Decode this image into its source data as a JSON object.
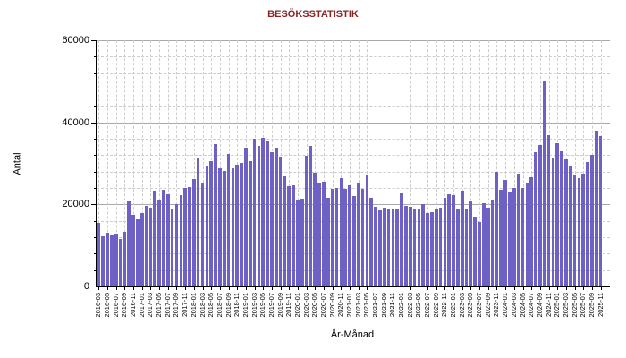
{
  "title": "BESÖKSSTATISTIK",
  "x_axis_title": "År-Månad",
  "y_axis_title": "Antal",
  "colors": {
    "bar": "#6e61c6",
    "title": "#8b2323",
    "grid_minor": "#cccccc",
    "grid_major": "#a9a9a9",
    "axis": "#000000",
    "text": "#000000"
  },
  "chart_data": {
    "type": "bar",
    "title": "BESÖKSSTATISTIK",
    "xlabel": "År-Månad",
    "ylabel": "Antal",
    "ylim": [
      0,
      60000
    ],
    "y_major_step": 20000,
    "y_minor_step": 4000,
    "x_tick_every": 2,
    "grid": true,
    "legend_position": "none",
    "months": [
      "2016-03",
      "2016-04",
      "2016-05",
      "2016-06",
      "2016-07",
      "2016-08",
      "2016-09",
      "2016-10",
      "2016-11",
      "2016-12",
      "2017-01",
      "2017-02",
      "2017-03",
      "2017-04",
      "2017-05",
      "2017-06",
      "2017-07",
      "2017-08",
      "2017-09",
      "2017-10",
      "2017-11",
      "2017-12",
      "2018-01",
      "2018-02",
      "2018-03",
      "2018-04",
      "2018-05",
      "2018-06",
      "2018-07",
      "2018-08",
      "2018-09",
      "2018-10",
      "2018-11",
      "2018-12",
      "2019-01",
      "2019-02",
      "2019-03",
      "2019-04",
      "2019-05",
      "2019-06",
      "2019-07",
      "2019-08",
      "2019-09",
      "2019-10",
      "2019-11",
      "2019-12",
      "2020-01",
      "2020-02",
      "2020-03",
      "2020-04",
      "2020-05",
      "2020-06",
      "2020-07",
      "2020-08",
      "2020-09",
      "2020-10",
      "2020-11",
      "2020-12",
      "2021-01",
      "2021-02",
      "2021-03",
      "2021-04",
      "2021-05",
      "2021-06",
      "2021-07",
      "2021-08",
      "2021-09",
      "2021-10",
      "2021-11",
      "2021-12",
      "2022-01",
      "2022-02",
      "2022-03",
      "2022-04",
      "2022-05",
      "2022-06",
      "2022-07",
      "2022-08",
      "2022-09",
      "2022-10",
      "2022-11",
      "2022-12",
      "2023-01",
      "2023-02",
      "2023-03",
      "2023-04",
      "2023-05",
      "2023-06",
      "2023-07",
      "2023-08",
      "2023-09",
      "2023-10",
      "2023-11",
      "2023-12",
      "2024-01",
      "2024-02",
      "2024-03",
      "2024-04",
      "2024-05",
      "2024-06",
      "2024-07",
      "2024-08",
      "2024-09",
      "2024-10",
      "2024-11",
      "2024-12",
      "2025-01",
      "2025-02",
      "2025-03",
      "2025-04",
      "2025-05",
      "2025-06",
      "2025-07",
      "2025-08",
      "2025-09",
      "2025-10",
      "2025-11"
    ],
    "values": [
      15600,
      12200,
      13100,
      12500,
      12600,
      11500,
      13300,
      20700,
      17500,
      16300,
      17800,
      19600,
      19200,
      23400,
      20900,
      23600,
      22400,
      18900,
      20000,
      22200,
      24000,
      24300,
      26200,
      31300,
      25400,
      29200,
      30600,
      34700,
      28700,
      28200,
      32200,
      28900,
      29700,
      30200,
      33800,
      30500,
      35900,
      34300,
      36200,
      35500,
      32800,
      33800,
      31700,
      26900,
      24500,
      24600,
      21000,
      21300,
      31900,
      34300,
      27800,
      25200,
      25600,
      21700,
      23800,
      24100,
      26400,
      23800,
      24600,
      22100,
      25400,
      23800,
      27000,
      21600,
      19400,
      18600,
      19300,
      18700,
      19000,
      18900,
      22700,
      19600,
      19400,
      18800,
      19000,
      20000,
      17800,
      18100,
      18800,
      19300,
      21700,
      22500,
      22200,
      18800,
      23300,
      18800,
      20700,
      17100,
      15800,
      20400,
      19200,
      20900,
      27900,
      23500,
      26000,
      23100,
      24100,
      27400,
      24100,
      25200,
      26700,
      32700,
      34400,
      50000,
      36800,
      31200,
      35000,
      33000,
      31000,
      29200,
      27000,
      26500,
      27500,
      30300,
      32100,
      37900,
      36700
    ]
  }
}
